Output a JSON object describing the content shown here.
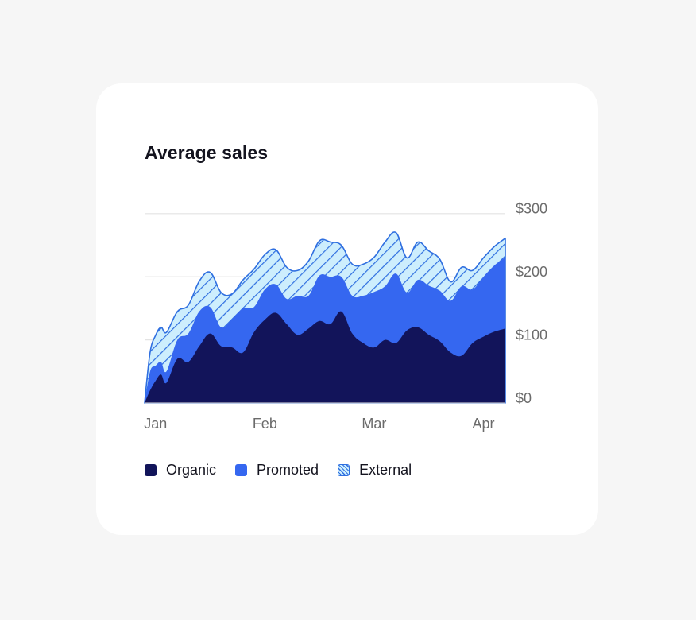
{
  "card": {
    "title": "Average sales"
  },
  "chart_data": {
    "type": "area",
    "stacked": true,
    "title": "Average sales",
    "xlabel": "",
    "ylabel": "",
    "x_ticks": [
      "Jan",
      "Feb",
      "Mar",
      "Apr"
    ],
    "x_tick_positions": [
      0.1,
      1.1,
      2.1,
      3.1
    ],
    "x_range": [
      0,
      3.3
    ],
    "y_ticks": [
      "$0",
      "$100",
      "$200",
      "$300"
    ],
    "y_tick_values": [
      0,
      100,
      200,
      300
    ],
    "ylim": [
      0,
      330
    ],
    "grid": "horizontal",
    "legend_position": "bottom-left",
    "x": [
      0,
      0.05,
      0.1,
      0.15,
      0.2,
      0.3,
      0.4,
      0.5,
      0.6,
      0.7,
      0.8,
      0.9,
      1.0,
      1.1,
      1.2,
      1.3,
      1.4,
      1.5,
      1.6,
      1.7,
      1.8,
      1.9,
      2.0,
      2.1,
      2.2,
      2.3,
      2.4,
      2.5,
      2.6,
      2.7,
      2.8,
      2.9,
      3.0,
      3.1,
      3.2,
      3.3
    ],
    "series": [
      {
        "name": "Organic",
        "color": "#12145a",
        "pattern": "solid",
        "values": [
          0,
          20,
          35,
          45,
          32,
          70,
          65,
          90,
          110,
          90,
          88,
          80,
          112,
          132,
          143,
          125,
          108,
          118,
          130,
          125,
          145,
          110,
          95,
          88,
          100,
          95,
          115,
          120,
          108,
          98,
          80,
          75,
          95,
          105,
          113,
          118
        ]
      },
      {
        "name": "Promoted",
        "color": "#3567f0",
        "pattern": "solid",
        "values": [
          0,
          30,
          24,
          20,
          18,
          30,
          45,
          55,
          42,
          30,
          45,
          70,
          40,
          48,
          45,
          40,
          62,
          52,
          72,
          75,
          55,
          60,
          75,
          88,
          85,
          110,
          60,
          75,
          78,
          80,
          82,
          110,
          85,
          95,
          105,
          113
        ]
      },
      {
        "name": "External",
        "color": "#2f6fe0",
        "pattern": "hatch",
        "values": [
          0,
          30,
          48,
          55,
          62,
          45,
          45,
          48,
          55,
          55,
          40,
          45,
          60,
          55,
          55,
          50,
          40,
          55,
          55,
          55,
          50,
          50,
          50,
          55,
          70,
          65,
          55,
          60,
          55,
          50,
          30,
          30,
          30,
          30,
          30,
          30
        ]
      }
    ]
  }
}
